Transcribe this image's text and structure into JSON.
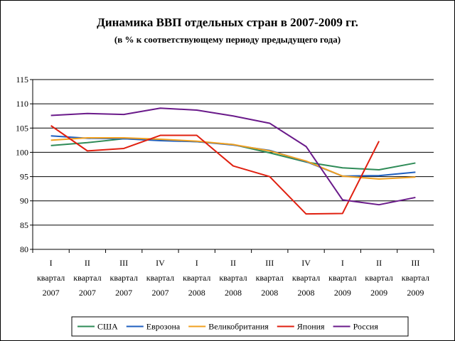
{
  "chart_data": {
    "type": "line",
    "title": "Динамика ВВП отдельных стран в 2007-2009 гг.",
    "subtitle": "(в % к соответствующему периоду предыдущего года)",
    "ylim": [
      80,
      115
    ],
    "yticks": [
      80,
      85,
      90,
      95,
      100,
      105,
      110,
      115
    ],
    "grid": "horizontal",
    "legend_position": "bottom",
    "categories": [
      [
        "I",
        "квартал",
        "2007"
      ],
      [
        "II",
        "квартал",
        "2007"
      ],
      [
        "III",
        "квартал",
        "2007"
      ],
      [
        "IV",
        "квартал",
        "2007"
      ],
      [
        "I",
        "квартал",
        "2008"
      ],
      [
        "II",
        "квартал",
        "2008"
      ],
      [
        "III",
        "квартал",
        "2008"
      ],
      [
        "IV",
        "квартал",
        "2008"
      ],
      [
        "I",
        "квартал",
        "2009"
      ],
      [
        "II",
        "квартал",
        "2009"
      ],
      [
        "III",
        "квартал",
        "2009"
      ]
    ],
    "series": [
      {
        "name": "США",
        "color": "#2e8b57",
        "values": [
          101.4,
          102.0,
          102.8,
          102.5,
          102.2,
          101.6,
          99.9,
          98.0,
          96.8,
          96.4,
          97.8
        ]
      },
      {
        "name": "Еврозона",
        "color": "#1f5fbf",
        "values": [
          103.4,
          102.9,
          102.8,
          102.4,
          102.2,
          101.5,
          100.4,
          98.1,
          95.1,
          95.2,
          95.9
        ]
      },
      {
        "name": "Великобритания",
        "color": "#f0a020",
        "values": [
          102.5,
          103.0,
          103.0,
          102.7,
          102.3,
          101.6,
          100.3,
          98.2,
          95.1,
          94.5,
          94.9
        ]
      },
      {
        "name": "Япония",
        "color": "#e02010",
        "values": [
          105.5,
          100.3,
          100.8,
          103.5,
          103.5,
          97.2,
          95.0,
          87.3,
          87.4,
          102.3,
          null
        ]
      },
      {
        "name": "Россия",
        "color": "#6a1a8a",
        "values": [
          107.6,
          108.0,
          107.8,
          109.1,
          108.7,
          107.5,
          106.0,
          101.2,
          90.2,
          89.2,
          90.7
        ]
      }
    ]
  }
}
